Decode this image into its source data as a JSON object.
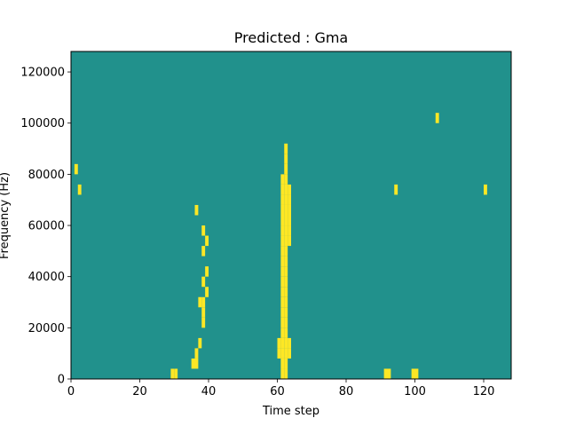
{
  "chart_data": {
    "type": "heatmap",
    "title": "Predicted : Gma",
    "xlabel": "Time step",
    "ylabel": "Frequency (Hz)",
    "xlim": [
      0,
      128
    ],
    "ylim": [
      0,
      128000
    ],
    "x_ticks": [
      0,
      20,
      40,
      60,
      80,
      100,
      120
    ],
    "x_tick_labels": [
      "0",
      "20",
      "40",
      "60",
      "80",
      "100",
      "120"
    ],
    "y_ticks": [
      0,
      20000,
      40000,
      60000,
      80000,
      100000,
      120000
    ],
    "y_tick_labels": [
      "0",
      "20000",
      "40000",
      "60000",
      "80000",
      "100000",
      "120000"
    ],
    "grid": false,
    "legend": "none",
    "colormap": "viridis",
    "value_levels": [
      {
        "value": -1,
        "color": "#440154"
      },
      {
        "value": 0,
        "color": "#21918c"
      },
      {
        "value": 1,
        "color": "#fde725"
      }
    ],
    "background_value": 0,
    "cell_width_steps": 1,
    "cell_height_hz": 4000,
    "cells": [
      [
        61,
        0,
        1
      ],
      [
        62,
        0,
        1
      ],
      [
        61,
        4000,
        1
      ],
      [
        62,
        4000,
        1
      ],
      [
        60,
        8000,
        1
      ],
      [
        61,
        8000,
        1
      ],
      [
        62,
        8000,
        1
      ],
      [
        63,
        8000,
        1
      ],
      [
        60,
        12000,
        1
      ],
      [
        61,
        12000,
        1
      ],
      [
        62,
        12000,
        1
      ],
      [
        63,
        12000,
        1
      ],
      [
        61,
        16000,
        1
      ],
      [
        62,
        16000,
        1
      ],
      [
        61,
        20000,
        1
      ],
      [
        62,
        20000,
        1
      ],
      [
        61,
        24000,
        1
      ],
      [
        62,
        24000,
        1
      ],
      [
        61,
        28000,
        1
      ],
      [
        62,
        28000,
        1
      ],
      [
        61,
        32000,
        1
      ],
      [
        62,
        32000,
        1
      ],
      [
        61,
        36000,
        1
      ],
      [
        62,
        36000,
        1
      ],
      [
        61,
        40000,
        1
      ],
      [
        62,
        40000,
        1
      ],
      [
        61,
        44000,
        1
      ],
      [
        62,
        44000,
        1
      ],
      [
        61,
        48000,
        1
      ],
      [
        62,
        48000,
        1
      ],
      [
        61,
        52000,
        1
      ],
      [
        62,
        52000,
        1
      ],
      [
        63,
        52000,
        1
      ],
      [
        61,
        56000,
        1
      ],
      [
        62,
        56000,
        1
      ],
      [
        63,
        56000,
        1
      ],
      [
        61,
        60000,
        1
      ],
      [
        62,
        60000,
        1
      ],
      [
        63,
        60000,
        1
      ],
      [
        61,
        64000,
        1
      ],
      [
        62,
        64000,
        1
      ],
      [
        63,
        64000,
        1
      ],
      [
        61,
        68000,
        1
      ],
      [
        62,
        68000,
        1
      ],
      [
        63,
        68000,
        1
      ],
      [
        61,
        72000,
        1
      ],
      [
        62,
        72000,
        1
      ],
      [
        63,
        72000,
        1
      ],
      [
        61,
        76000,
        1
      ],
      [
        62,
        76000,
        1
      ],
      [
        62,
        80000,
        1
      ],
      [
        62,
        84000,
        1
      ],
      [
        62,
        88000,
        1
      ],
      [
        29,
        0,
        1
      ],
      [
        30,
        0,
        1
      ],
      [
        35,
        4000,
        1
      ],
      [
        36,
        4000,
        1
      ],
      [
        36,
        8000,
        1
      ],
      [
        37,
        12000,
        1
      ],
      [
        38,
        20000,
        1
      ],
      [
        38,
        24000,
        1
      ],
      [
        37,
        28000,
        1
      ],
      [
        38,
        28000,
        1
      ],
      [
        39,
        32000,
        1
      ],
      [
        38,
        36000,
        1
      ],
      [
        39,
        40000,
        1
      ],
      [
        38,
        48000,
        1
      ],
      [
        39,
        52000,
        1
      ],
      [
        38,
        56000,
        1
      ],
      [
        36,
        64000,
        1
      ],
      [
        91,
        0,
        1
      ],
      [
        92,
        0,
        1
      ],
      [
        99,
        0,
        1
      ],
      [
        100,
        0,
        1
      ],
      [
        2,
        72000,
        1
      ],
      [
        1,
        80000,
        1
      ],
      [
        94,
        72000,
        1
      ],
      [
        120,
        72000,
        1
      ],
      [
        106,
        100000,
        1
      ]
    ]
  }
}
